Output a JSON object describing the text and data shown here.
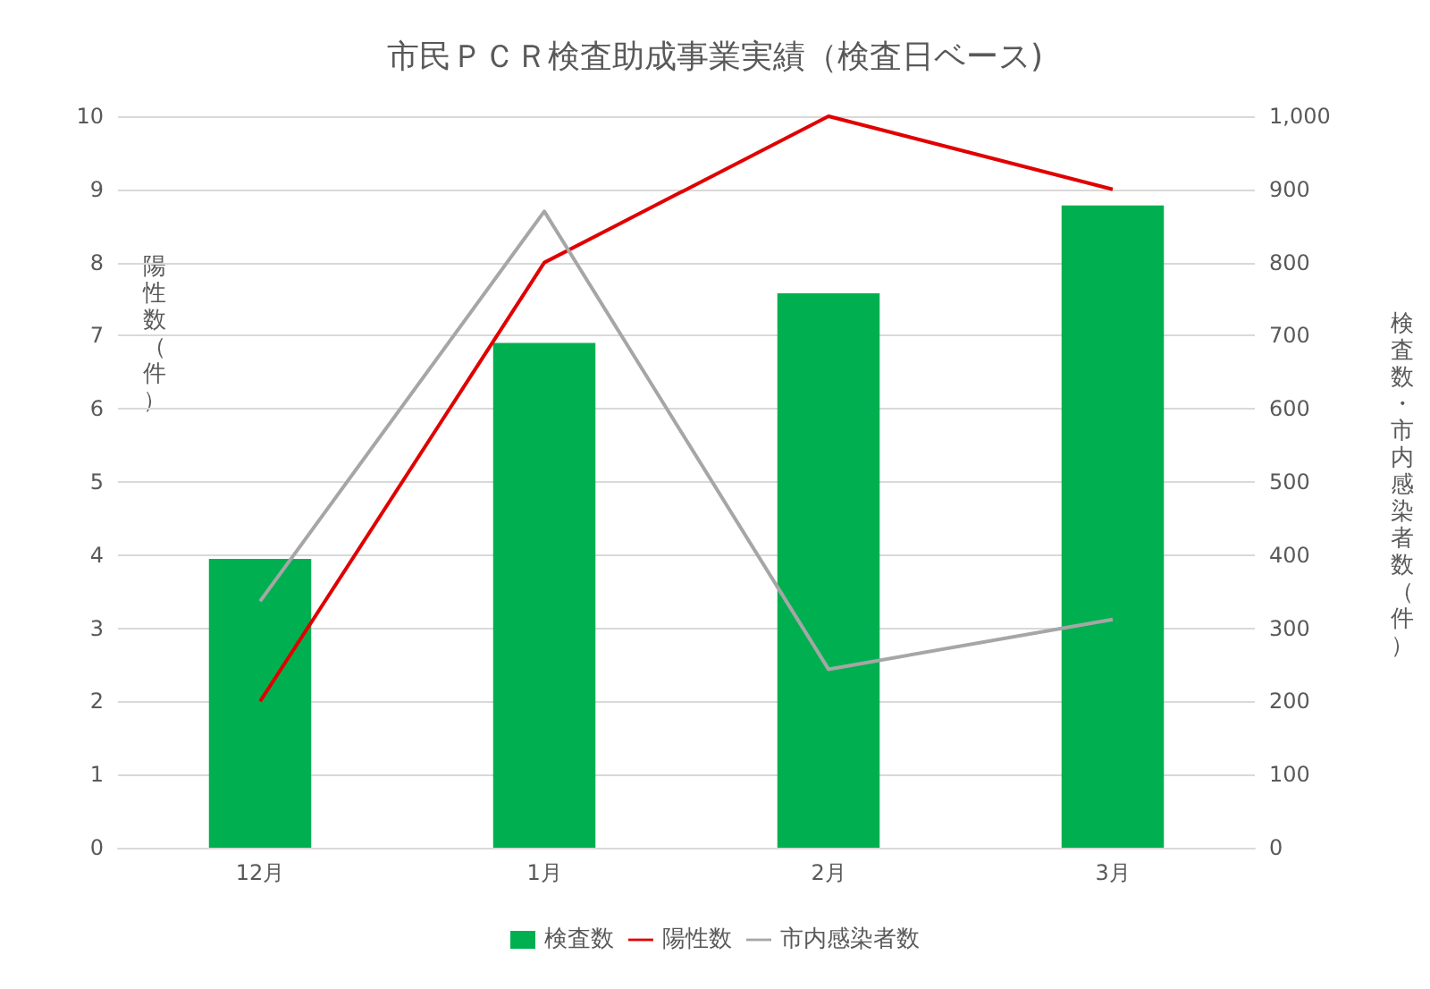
{
  "chart_data": {
    "type": "bar",
    "title": "市民ＰＣＲ検査助成事業実績（検査日ベース)",
    "ylabel": "陽性数（件）",
    "y2label": "検査数・市内感染者数（件）",
    "categories": [
      "12月",
      "1月",
      "2月",
      "3月"
    ],
    "series": [
      {
        "name": "検査数",
        "axis": "y2",
        "color": "#00b050",
        "values": [
          395,
          690,
          758,
          878
        ]
      },
      {
        "name": "陽性数",
        "type": "line",
        "color": "#e00000",
        "values": [
          2,
          8,
          10,
          9
        ]
      },
      {
        "name": "市内感染者数",
        "type": "line",
        "axis": "y2",
        "color": "#a6a6a6",
        "values": [
          337,
          870,
          244,
          312
        ]
      }
    ],
    "ylim": [
      0,
      10
    ],
    "yticks": [
      0,
      1,
      2,
      3,
      4,
      5,
      6,
      7,
      8,
      9,
      10
    ],
    "y2lim": [
      0,
      1000
    ],
    "y2ticks": [
      0,
      100,
      200,
      300,
      400,
      500,
      600,
      700,
      800,
      900,
      {
        "value": 1000,
        "label": "1,000"
      }
    ],
    "grid": "y",
    "legend": "bottom",
    "marker": "none"
  }
}
